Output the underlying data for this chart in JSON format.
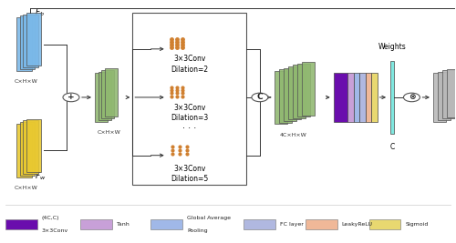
{
  "bg_color": "#ffffff",
  "blue_color": "#7ab8e8",
  "yellow_color": "#e8c830",
  "green_color": "#90b870",
  "gray_color": "#b8b8b8",
  "dot_color": "#d08030",
  "border_color": "#555555",
  "arrow_color": "#333333",
  "purple_color": "#6a0dad",
  "light_purple_color": "#c8a0d8",
  "light_blue_color": "#a0b8e8",
  "steel_blue_color": "#b0b8e0",
  "orange_color": "#f0b898",
  "yellow_leg_color": "#e8d870",
  "cyan_color": "#80e8e0",
  "legend_colors": [
    "#6a0dad",
    "#c8a0d8",
    "#a0b8e8",
    "#b0b8e0",
    "#f0b898",
    "#e8d870"
  ],
  "legend_labels": [
    "(4C,C)\n3×3Conv",
    "Tanh",
    "Global Average\nPooling",
    "FC layer",
    "LeakyReLU",
    "Sigmoid"
  ]
}
